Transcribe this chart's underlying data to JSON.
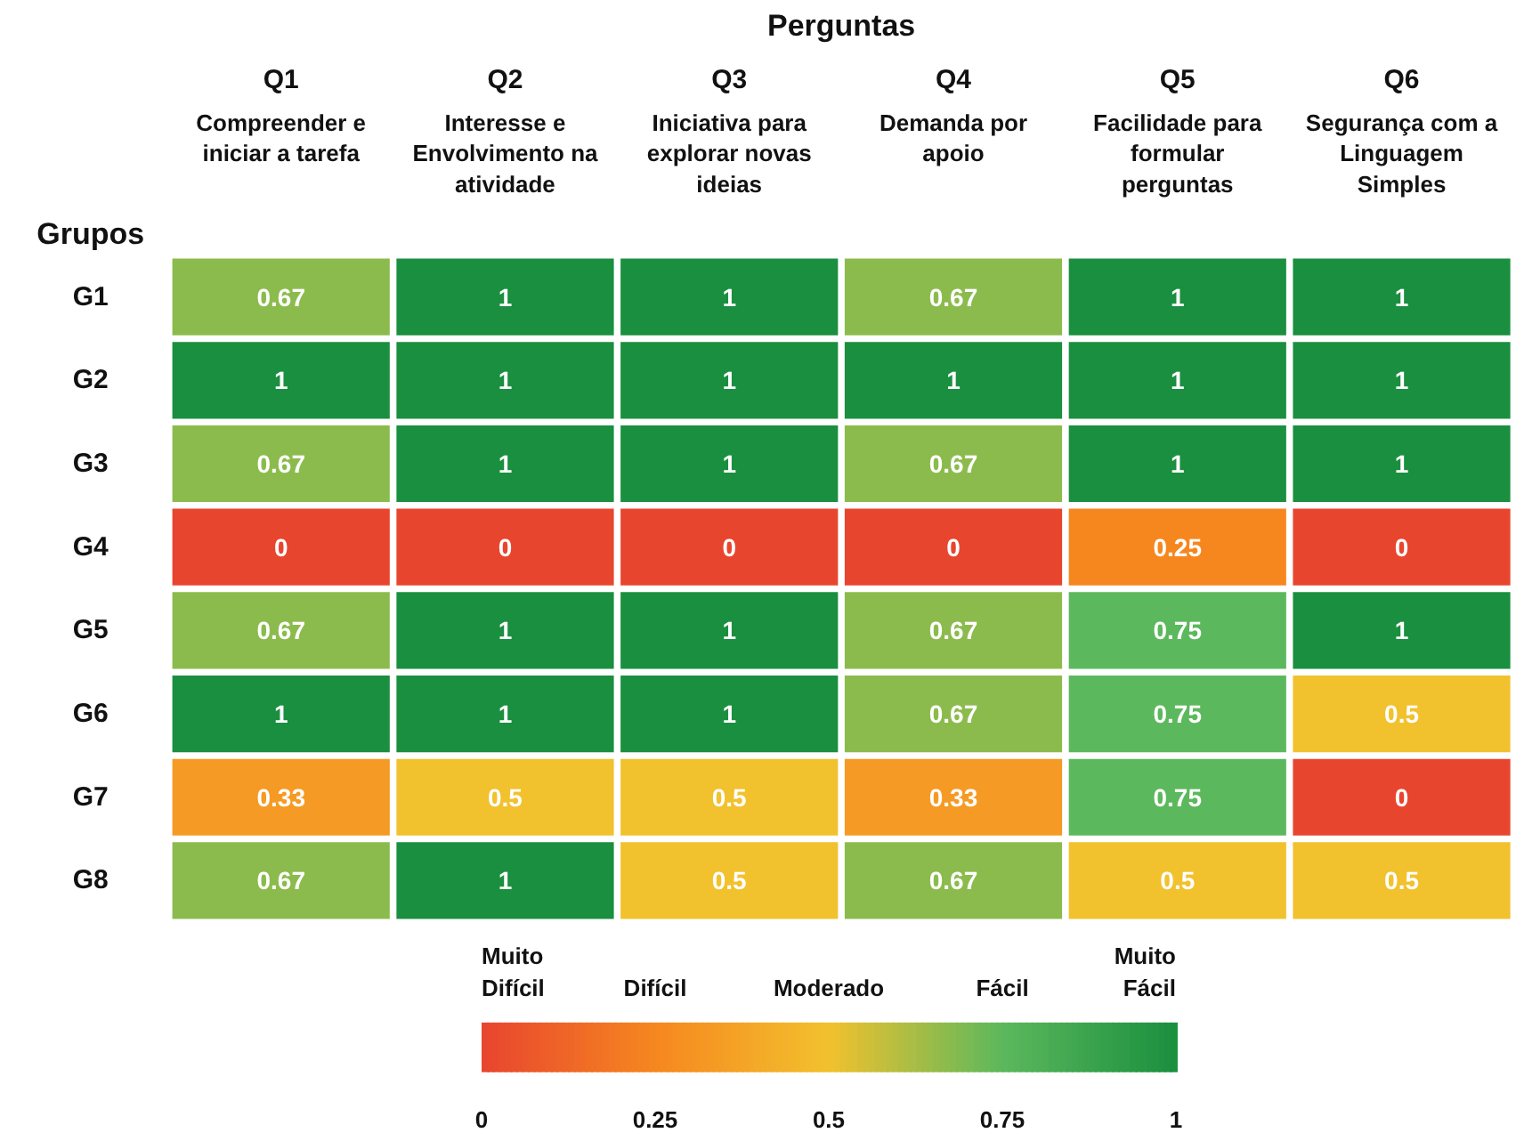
{
  "chart_data": {
    "type": "heatmap",
    "xlabel": "Perguntas",
    "ylabel": "Grupos",
    "categories": [
      "Q1\nCompreender e\niniciar a tarefa",
      "Q2\nInteresse e\nEnvolvimento na\natividade",
      "Q3\nIniciativa para\nexplorar novas\nideias",
      "Q4\nDemanda por\napoio",
      "Q5\nFacilidade para\nformular\nperguntas",
      "Q6\nSegurança com a\nLinguagem\nSimples"
    ],
    "y_categories": [
      "G1",
      "G2",
      "G3",
      "G4",
      "G5",
      "G6",
      "G7",
      "G8"
    ],
    "cells": [
      [
        0.67,
        1,
        1,
        0.67,
        1,
        1
      ],
      [
        1,
        1,
        1,
        1,
        1,
        1
      ],
      [
        0.67,
        1,
        1,
        0.67,
        1,
        1
      ],
      [
        0,
        0,
        0,
        0,
        0.25,
        0
      ],
      [
        0.67,
        1,
        1,
        0.67,
        0.75,
        1
      ],
      [
        1,
        1,
        1,
        0.67,
        0.75,
        0.5
      ],
      [
        0.33,
        0.5,
        0.5,
        0.33,
        0.75,
        0
      ],
      [
        0.67,
        1,
        0.5,
        0.67,
        0.5,
        0.5
      ]
    ],
    "data_labels": true,
    "clim": [
      0,
      1
    ],
    "cticks": [
      0,
      0.25,
      0.5,
      0.75,
      1
    ],
    "annotations": [
      "Muito\nDifícil",
      "Difícil",
      "Moderado",
      "Fácil",
      "Muito\nFácil"
    ]
  }
}
